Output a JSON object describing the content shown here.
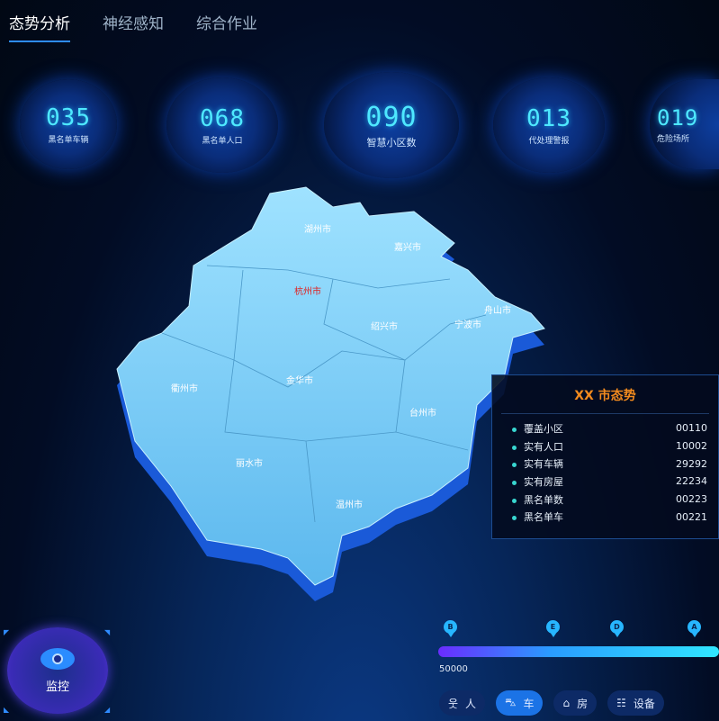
{
  "tabs": [
    {
      "label": "态势分析",
      "active": true
    },
    {
      "label": "神经感知",
      "active": false
    },
    {
      "label": "综合作业",
      "active": false
    }
  ],
  "stats": [
    {
      "value": "035",
      "label": "黑名单车辆"
    },
    {
      "value": "068",
      "label": "黑名单人口"
    },
    {
      "value": "090",
      "label": "智慧小区数"
    },
    {
      "value": "013",
      "label": "代处理警报"
    },
    {
      "value": "019",
      "label": "危险场所"
    }
  ],
  "map": {
    "cities": [
      {
        "name": "湖州市"
      },
      {
        "name": "嘉兴市"
      },
      {
        "name": "杭州市",
        "highlight": "#e02020"
      },
      {
        "name": "舟山市"
      },
      {
        "name": "绍兴市"
      },
      {
        "name": "宁波市"
      },
      {
        "name": "衢州市"
      },
      {
        "name": "金华市"
      },
      {
        "name": "台州市"
      },
      {
        "name": "丽水市"
      },
      {
        "name": "温州市"
      }
    ]
  },
  "panel": {
    "title": "XX 市态势",
    "rows": [
      {
        "label": "覆盖小区",
        "value": "00110"
      },
      {
        "label": "实有人口",
        "value": "10002"
      },
      {
        "label": "实有车辆",
        "value": "29292"
      },
      {
        "label": "实有房屋",
        "value": "22234"
      },
      {
        "label": "黑名单数",
        "value": "00223"
      },
      {
        "label": "黑名单车",
        "value": "00221"
      }
    ]
  },
  "monitor": {
    "label": "监控",
    "icon": "eye-icon"
  },
  "timeline": {
    "markers": [
      "B",
      "E",
      "D",
      "A"
    ],
    "value": "50000"
  },
  "categories": [
    {
      "label": "人",
      "icon": "person-icon"
    },
    {
      "label": "车",
      "icon": "car-icon",
      "active": true
    },
    {
      "label": "房",
      "icon": "house-icon"
    },
    {
      "label": "设备",
      "icon": "device-icon"
    }
  ]
}
